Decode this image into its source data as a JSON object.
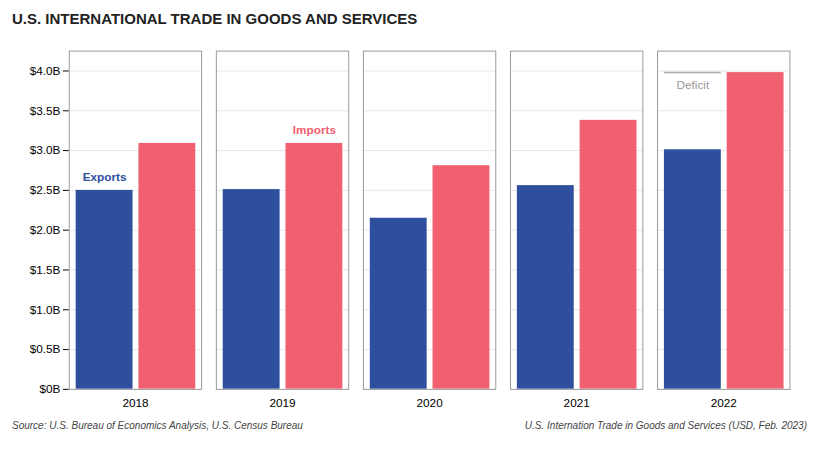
{
  "chart_data": {
    "type": "bar",
    "title": "U.S. INTERNATIONAL TRADE IN GOODS AND SERVICES",
    "categories": [
      "2018",
      "2019",
      "2020",
      "2021",
      "2022"
    ],
    "series": [
      {
        "name": "Exports",
        "color": "#2d4f9e",
        "values": [
          2.5,
          2.51,
          2.15,
          2.56,
          3.01
        ]
      },
      {
        "name": "Imports",
        "color": "#f06070",
        "values": [
          3.09,
          3.09,
          2.81,
          3.38,
          3.98
        ]
      }
    ],
    "ylim": [
      0,
      4.25
    ],
    "yticks": [
      {
        "value": 0,
        "label": "$0B"
      },
      {
        "value": 0.5,
        "label": "$0.5B"
      },
      {
        "value": 1.0,
        "label": "$1.0B"
      },
      {
        "value": 1.5,
        "label": "$1.5B"
      },
      {
        "value": 2.0,
        "label": "$2.0B"
      },
      {
        "value": 2.5,
        "label": "$2.5B"
      },
      {
        "value": 3.0,
        "label": "$3.0B"
      },
      {
        "value": 3.5,
        "label": "$3.5B"
      },
      {
        "value": 4.0,
        "label": "$4.0B"
      }
    ],
    "grid": true,
    "annotations": [
      {
        "text": "Deficit",
        "x": "2022"
      }
    ],
    "source": "Source: U.S. Bureau of Economics Analysis, U.S. Census Bureau",
    "caption": "U.S. Internation Trade in Goods and Services (USD, Feb. 2023)"
  }
}
